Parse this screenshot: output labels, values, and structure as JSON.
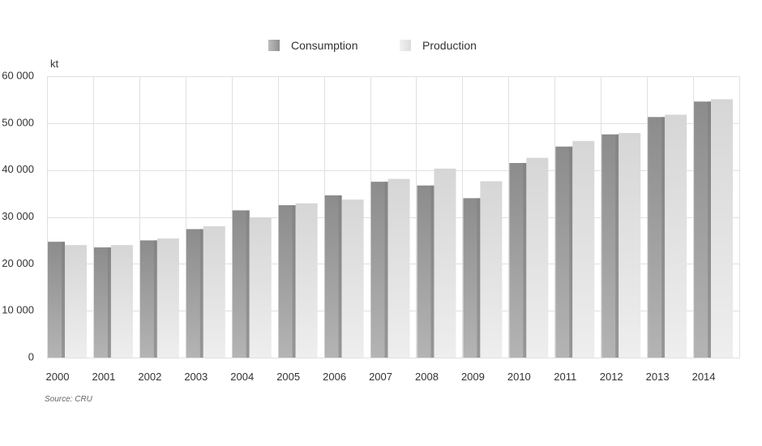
{
  "chart_data": {
    "type": "bar",
    "title": "",
    "xlabel": "",
    "ylabel": "kt",
    "ylim": [
      0,
      60000
    ],
    "yticks": [
      0,
      10000,
      20000,
      30000,
      40000,
      50000,
      60000
    ],
    "ytick_labels": [
      "0",
      "10 000",
      "20 000",
      "30 000",
      "40 000",
      "50 000",
      "60 000"
    ],
    "categories": [
      "2000",
      "2001",
      "2002",
      "2003",
      "2004",
      "2005",
      "2006",
      "2007",
      "2008",
      "2009",
      "2010",
      "2011",
      "2012",
      "2013",
      "2014"
    ],
    "series": [
      {
        "name": "Consumption",
        "color": "#8f8f8f",
        "values": [
          24700,
          23500,
          25000,
          27400,
          31400,
          32500,
          34600,
          37500,
          36700,
          34000,
          41500,
          45000,
          47600,
          51300,
          54600
        ]
      },
      {
        "name": "Production",
        "color": "#dcdcdc",
        "values": [
          24000,
          24000,
          25400,
          28000,
          29900,
          32900,
          33700,
          38100,
          40300,
          37600,
          42600,
          46200,
          47900,
          51800,
          55100
        ]
      }
    ],
    "grid": true,
    "legend_position": "top-center"
  },
  "source_note": "Source: CRU"
}
